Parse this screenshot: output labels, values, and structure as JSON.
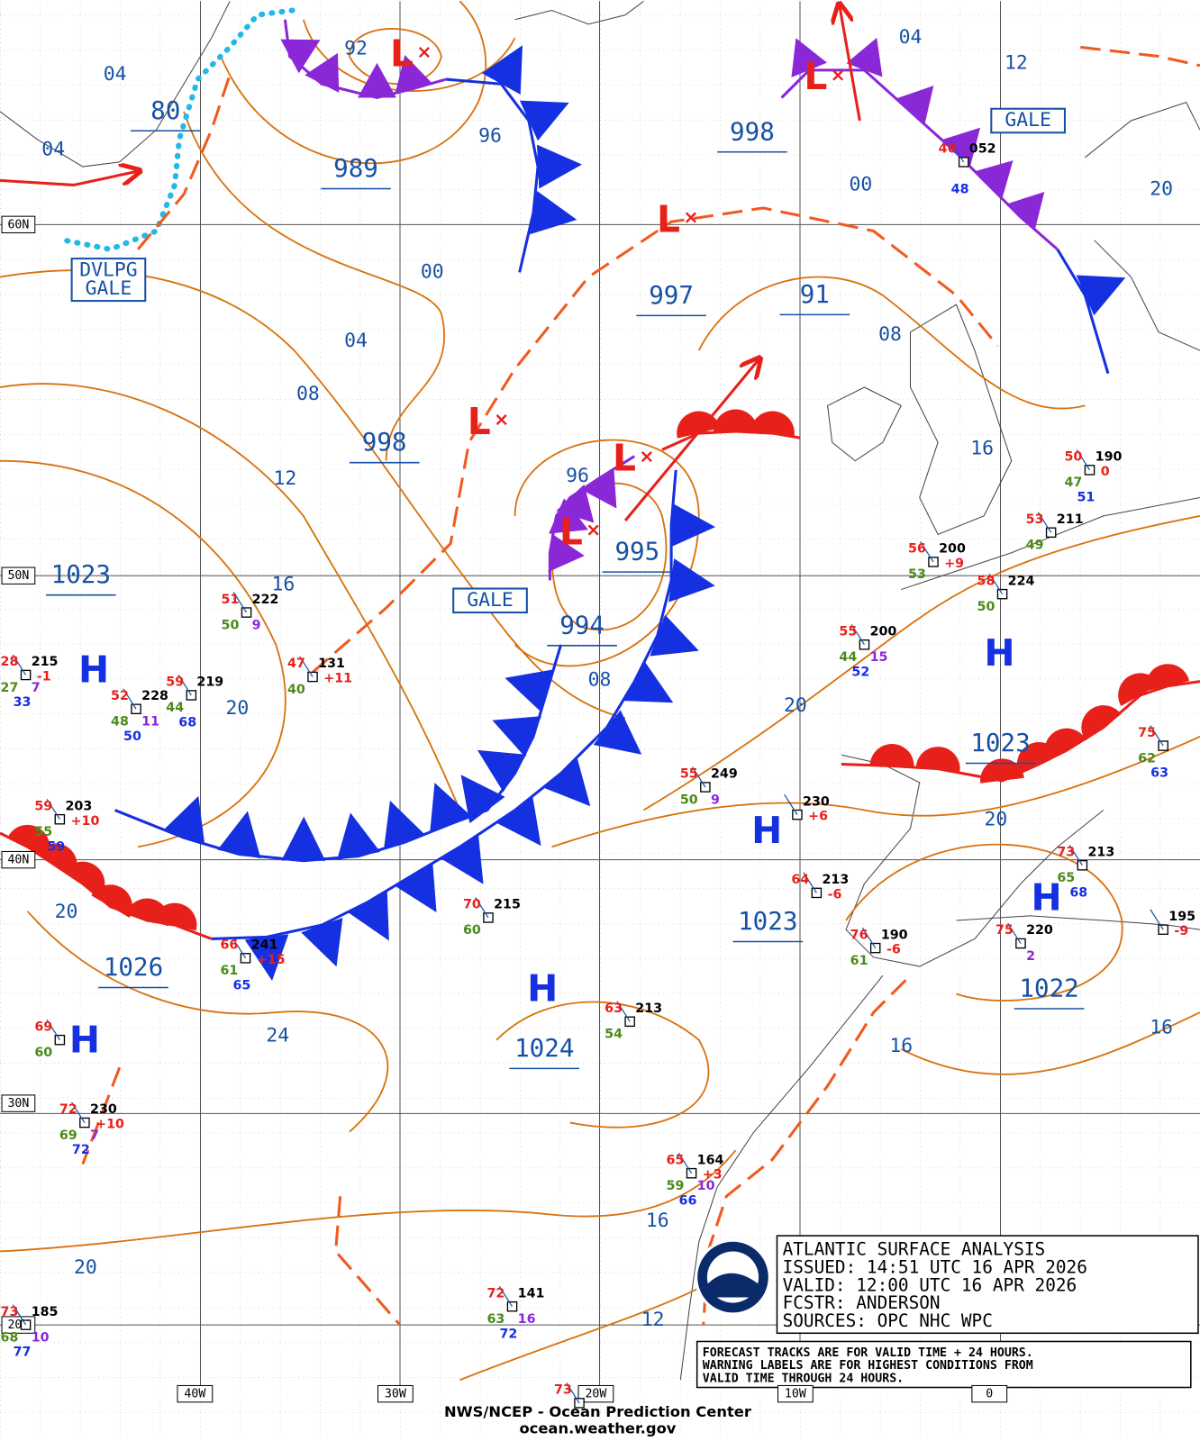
{
  "map": {
    "lat_labels": [
      "60N",
      "50N",
      "40N",
      "30N",
      "20N"
    ],
    "lon_labels": [
      "40W",
      "30W",
      "20W",
      "10W",
      "0"
    ],
    "isobar_labels": [
      "04",
      "80",
      "04",
      "92",
      "96",
      "989",
      "00",
      "04",
      "08",
      "998",
      "12",
      "16",
      "1023",
      "20",
      "998",
      "04",
      "12",
      "00",
      "997",
      "91",
      "08",
      "96",
      "995",
      "994",
      "08",
      "16",
      "20",
      "1023",
      "20",
      "20",
      "20",
      "1026",
      "24",
      "1024",
      "1023",
      "1022",
      "16",
      "16",
      "16",
      "20",
      "12"
    ],
    "centers": [
      "H",
      "H",
      "H",
      "H",
      "H",
      "H",
      "L",
      "L",
      "L",
      "L",
      "L",
      "L"
    ],
    "warnings": [
      [
        "DVLPG",
        "GALE"
      ],
      [
        "GALE"
      ],
      [
        "GALE"
      ]
    ],
    "stations": [
      {
        "t": 51,
        "td": 50,
        "p": 222,
        "v": 9
      },
      {
        "t": 28,
        "td": 27,
        "p": 215,
        "dp": "-1",
        "v": 7,
        "w": 33
      },
      {
        "t": 52,
        "td": 48,
        "p": 228,
        "v": 11,
        "w": 50
      },
      {
        "t": 59,
        "td": 44,
        "p": 219,
        "w": 68
      },
      {
        "t": 47,
        "td": 40,
        "p": 131,
        "dp": "+11"
      },
      {
        "t": 59,
        "td": 55,
        "p": 203,
        "dp": "+10",
        "w": 59
      },
      {
        "t": 66,
        "td": 61,
        "p": 241,
        "dp": "+15",
        "w": 65
      },
      {
        "t": 69,
        "td": 60
      },
      {
        "t": 72,
        "td": 69,
        "p": 230,
        "dp": "+10",
        "v": 7,
        "w": 72
      },
      {
        "t": 70,
        "td": 60,
        "p": 215
      },
      {
        "t": 63,
        "td": 54,
        "p": 213
      },
      {
        "t": 55,
        "td": 50,
        "p": 249,
        "v": 9
      },
      {
        "p": 230,
        "dp": "+6"
      },
      {
        "t": 64,
        "p": 213,
        "dp": "-6"
      },
      {
        "t": 76,
        "td": 61,
        "p": 190,
        "dp": "-6"
      },
      {
        "t": 75,
        "p": 220,
        "v": 2
      },
      {
        "t": 73,
        "td": 65,
        "p": 213,
        "w": 68
      },
      {
        "p": 195,
        "dp": "-9"
      },
      {
        "t": 75,
        "td": 62,
        "w": 63
      },
      {
        "t": 55,
        "td": 44,
        "p": 200,
        "v": 15,
        "w": 52
      },
      {
        "t": 56,
        "td": 53,
        "p": 200,
        "dp": "+9"
      },
      {
        "t": 58,
        "td": 50,
        "p": 224
      },
      {
        "t": 53,
        "td": 49,
        "p": 211
      },
      {
        "t": 50,
        "td": 47,
        "p": 190,
        "dp": "0",
        "w": 51
      },
      {
        "t": 46,
        "p": "052",
        "w": 48
      },
      {
        "t": 65,
        "td": 59,
        "p": 164,
        "dp": "+3",
        "v": 10,
        "w": 66
      },
      {
        "t": 72,
        "td": 63,
        "p": 141,
        "v": 16,
        "w": 72
      },
      {
        "t": 73,
        "td": 68,
        "p": 185,
        "v": 10,
        "w": 77
      },
      {
        "t": 73
      }
    ]
  },
  "info_box": {
    "lines": [
      "ATLANTIC SURFACE ANALYSIS",
      "ISSUED:  14:51 UTC 16 APR 2026",
      "VALID:   12:00 UTC 16 APR 2026",
      "FCSTR:   ANDERSON",
      "SOURCES: OPC NHC WPC"
    ]
  },
  "notes": {
    "lines": [
      "FORECAST TRACKS ARE FOR VALID TIME + 24 HOURS.",
      "WARNING LABELS ARE FOR HIGHEST CONDITIONS FROM",
      "VALID TIME THROUGH 24 HOURS."
    ]
  },
  "footer": {
    "line1": "NWS/NCEP - Ocean Prediction Center",
    "line2": "ocean.weather.gov"
  }
}
